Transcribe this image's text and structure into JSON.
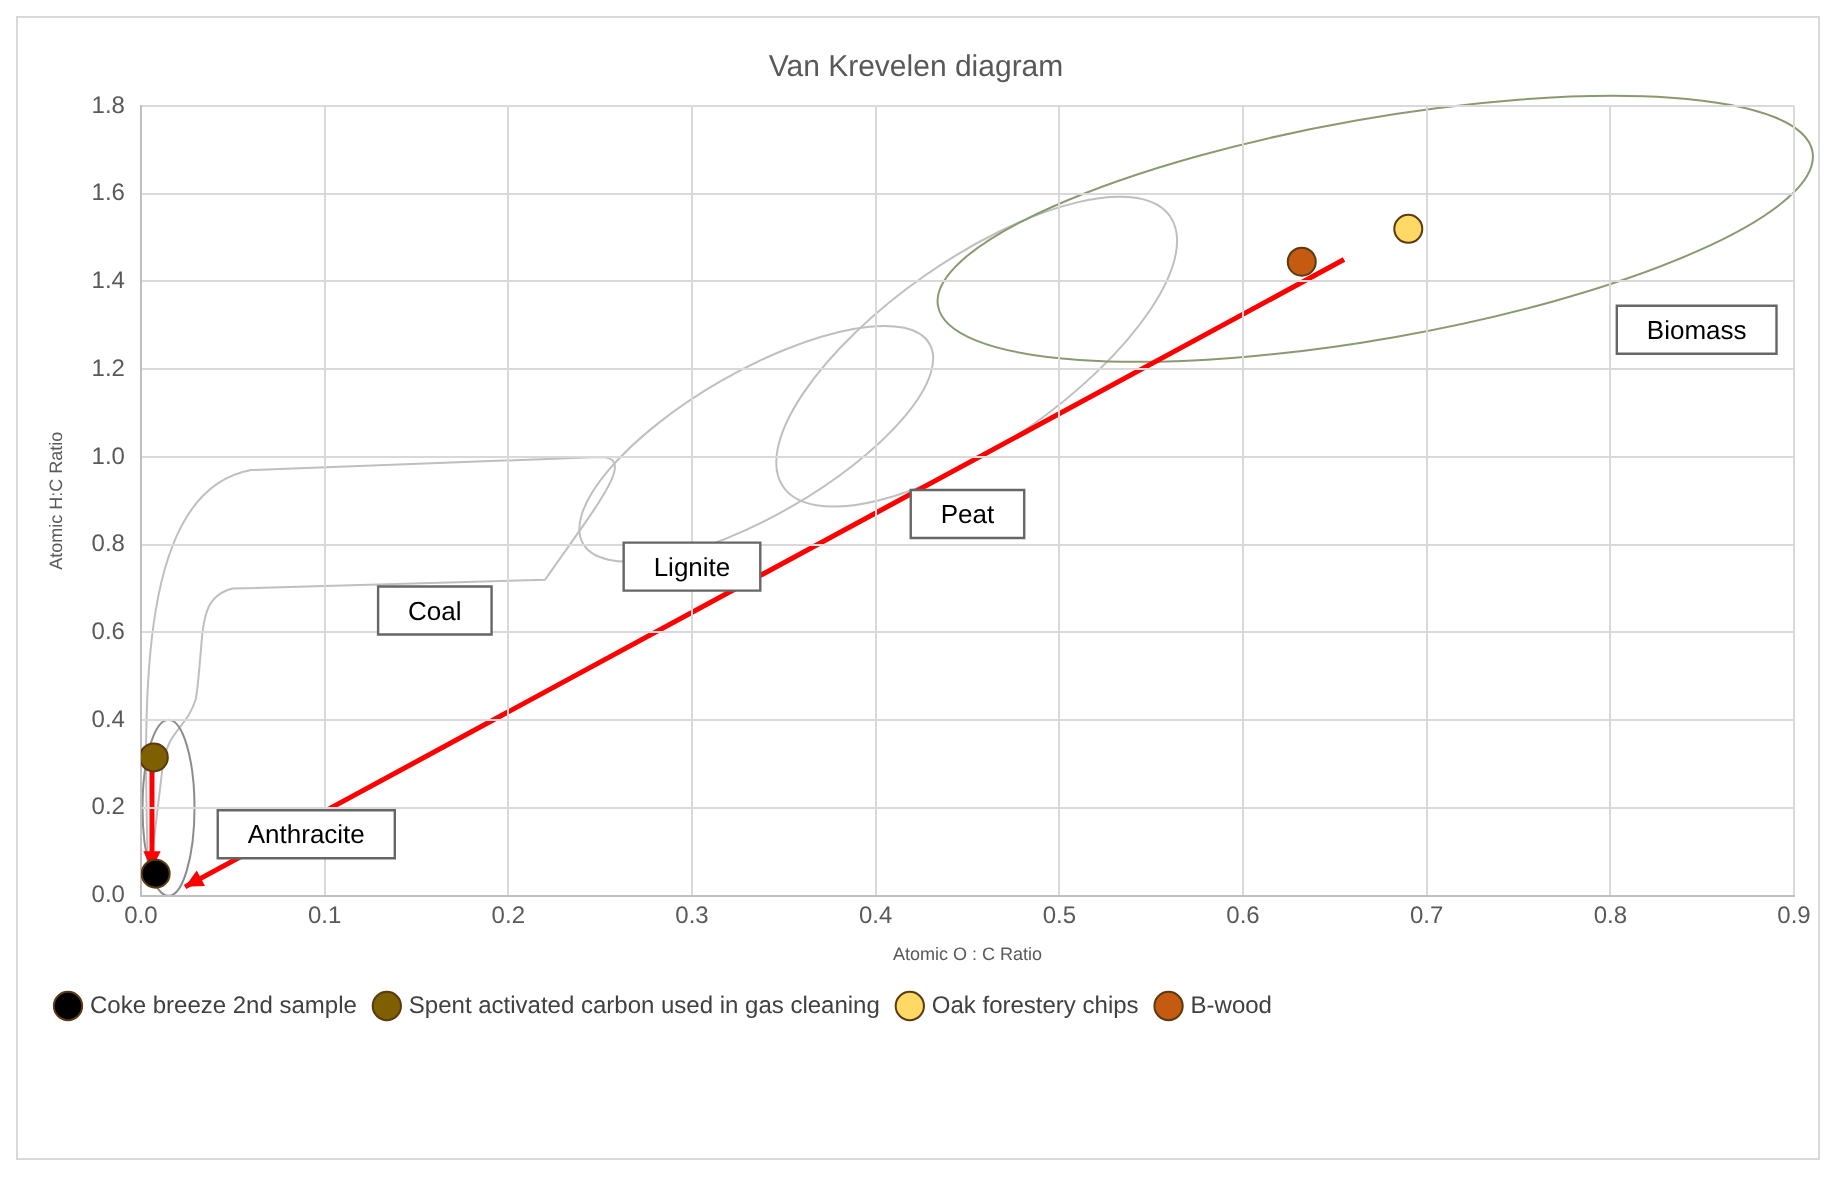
{
  "chart_data": {
    "type": "scatter",
    "title": "Van Krevelen diagram",
    "xlabel": "Atomic O : C Ratio",
    "ylabel": "Atomic H:C Ratio",
    "xlim": [
      0,
      0.9
    ],
    "xticks": [
      {
        "value": 0,
        "label": "0.0"
      },
      0.1,
      0.2,
      0.3,
      0.4,
      0.5,
      0.6,
      0.7,
      0.8,
      0.9
    ],
    "ylim": [
      0,
      1.8
    ],
    "yticks": [
      {
        "value": 0,
        "label": "0.0"
      },
      0.2,
      0.4,
      0.6,
      0.8,
      {
        "value": 1,
        "label": "1.0"
      },
      1.2,
      1.4,
      1.6,
      1.8
    ],
    "grid": true,
    "legend": "bottom",
    "marker": "circle",
    "series": [
      {
        "name": "Coke breeze 2nd sample",
        "color": "#000000",
        "x": [
          0.008
        ],
        "values": [
          0.05
        ]
      },
      {
        "name": "Spent activated carbon used in gas cleaning",
        "color": "#7f6000",
        "x": [
          0.007
        ],
        "values": [
          0.315
        ]
      },
      {
        "name": "Oak forestery chips",
        "color": "#ffd966",
        "x": [
          0.69
        ],
        "values": [
          1.52
        ]
      },
      {
        "name": "B-wood",
        "color": "#c55a11",
        "x": [
          0.632
        ],
        "values": [
          1.445
        ]
      }
    ],
    "annotations": [
      "Coal",
      "Lignite",
      "Peat",
      "Biomass",
      "Anthracite"
    ]
  }
}
